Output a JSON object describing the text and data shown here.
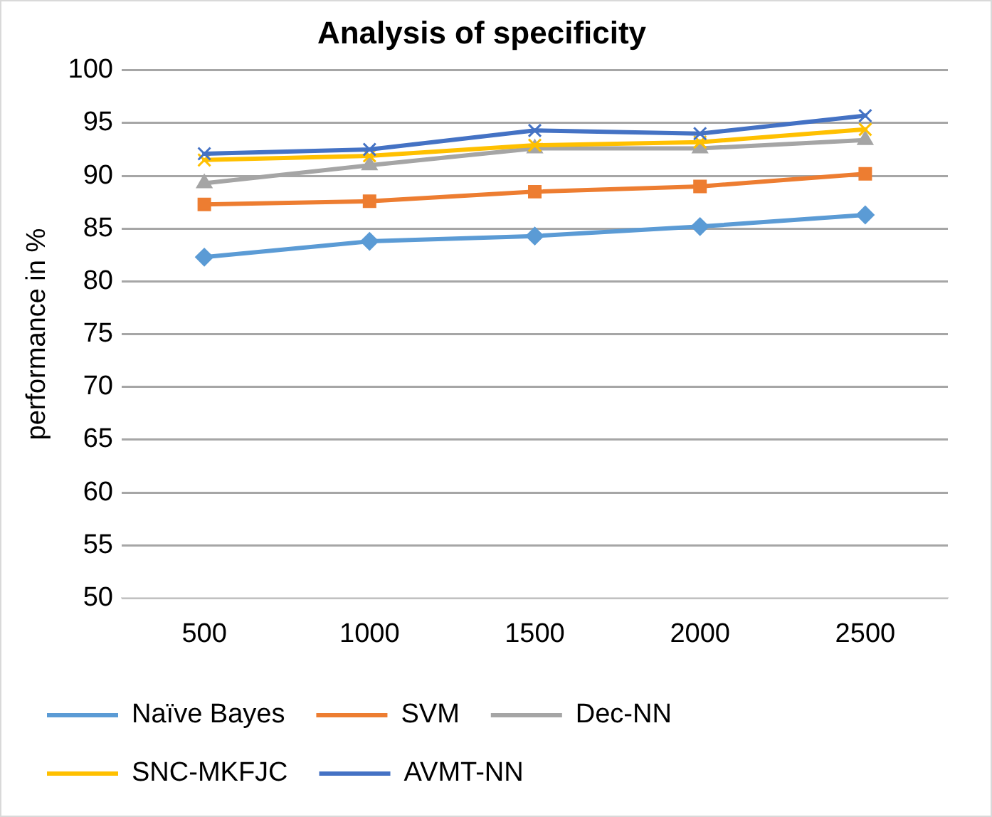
{
  "chart_data": {
    "type": "line",
    "title": "Analysis of specificity",
    "ylabel": "performance in %",
    "categories": [
      "500",
      "1000",
      "1500",
      "2000",
      "2500"
    ],
    "series": [
      {
        "name": "Naïve Bayes",
        "color": "#5b9bd5",
        "marker": "diamond",
        "values": [
          82.3,
          83.8,
          84.3,
          85.2,
          86.3
        ]
      },
      {
        "name": "SVM",
        "color": "#ed7d31",
        "marker": "square",
        "values": [
          87.3,
          87.6,
          88.5,
          89.0,
          90.2
        ]
      },
      {
        "name": "Dec-NN",
        "color": "#a5a5a5",
        "marker": "triangle",
        "values": [
          89.3,
          91.0,
          92.6,
          92.6,
          93.4
        ]
      },
      {
        "name": "SNC-MKFJC",
        "color": "#ffc000",
        "marker": "cross",
        "values": [
          91.5,
          91.9,
          92.9,
          93.2,
          94.4
        ]
      },
      {
        "name": "AVMT-NN",
        "color": "#4472c4",
        "marker": "cross",
        "values": [
          92.1,
          92.5,
          94.3,
          94.0,
          95.7
        ]
      }
    ],
    "ylim": [
      50,
      100
    ],
    "yticks": [
      50,
      55,
      60,
      65,
      70,
      75,
      80,
      85,
      90,
      95,
      100
    ],
    "grid": "y",
    "legend": "bottom",
    "line_style": "solid"
  }
}
